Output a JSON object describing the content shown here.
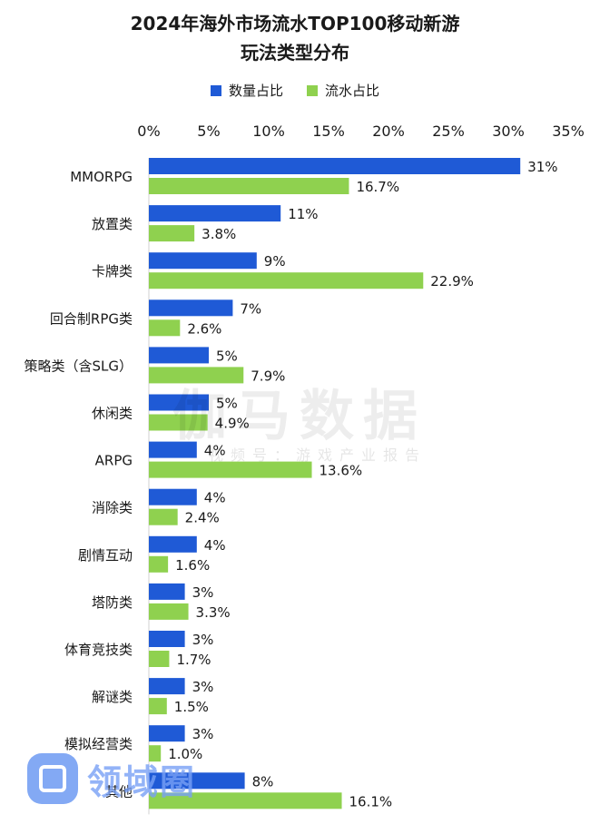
{
  "title_line1": "2024年海外市场流水TOP100移动新游",
  "title_line2": "玩法类型分布",
  "colors": {
    "series1": "#1f5ad6",
    "series2": "#8fd14f"
  },
  "watermark": {
    "main": "伽马数据",
    "sub": "视频号：游戏产业报告"
  },
  "logo": {
    "text": "领域圈"
  },
  "chart_data": {
    "type": "bar",
    "orientation": "horizontal",
    "categories": [
      "MMORPG",
      "放置类",
      "卡牌类",
      "回合制RPG类",
      "策略类（含SLG）",
      "休闲类",
      "ARPG",
      "消除类",
      "剧情互动",
      "塔防类",
      "体育竞技类",
      "解谜类",
      "模拟经营类",
      "其他"
    ],
    "series": [
      {
        "name": "数量占比",
        "values": [
          31,
          11,
          9,
          7,
          5,
          5,
          4,
          4,
          4,
          3,
          3,
          3,
          3,
          8
        ],
        "labels": [
          "31%",
          "11%",
          "9%",
          "7%",
          "5%",
          "5%",
          "4%",
          "4%",
          "4%",
          "3%",
          "3%",
          "3%",
          "3%",
          "8%"
        ]
      },
      {
        "name": "流水占比",
        "values": [
          16.7,
          3.8,
          22.9,
          2.6,
          7.9,
          4.9,
          13.6,
          2.4,
          1.6,
          3.3,
          1.7,
          1.5,
          1.0,
          16.1
        ],
        "labels": [
          "16.7%",
          "3.8%",
          "22.9%",
          "2.6%",
          "7.9%",
          "4.9%",
          "13.6%",
          "2.4%",
          "1.6%",
          "3.3%",
          "1.7%",
          "1.5%",
          "1.0%",
          "16.1%"
        ]
      }
    ],
    "xlim": [
      0,
      35
    ],
    "xticks": [
      "0%",
      "5%",
      "10%",
      "15%",
      "20%",
      "25%",
      "30%",
      "35%"
    ],
    "legend_position": "top-center"
  }
}
